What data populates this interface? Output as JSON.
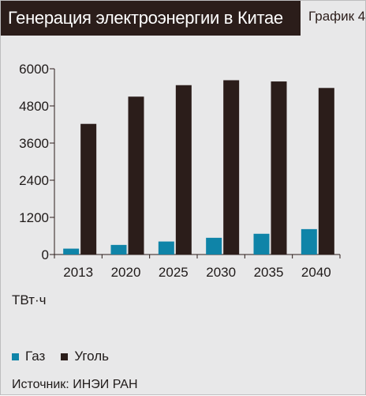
{
  "header": {
    "title": "Генерация электроэнергии в Китае",
    "chart_number": "График 4"
  },
  "units_label": "ТВт·ч",
  "legend": [
    {
      "label": "Газ",
      "color": "#0f84a8"
    },
    {
      "label": "Уголь",
      "color": "#2b1d1a"
    }
  ],
  "source": "Источник: ИНЭИ РАН",
  "chart_data": {
    "type": "bar",
    "categories": [
      "2013",
      "2020",
      "2025",
      "2030",
      "2035",
      "2040"
    ],
    "series": [
      {
        "name": "Газ",
        "color": "#0f84a8",
        "values": [
          190,
          310,
          420,
          540,
          670,
          820
        ]
      },
      {
        "name": "Уголь",
        "color": "#2b1d1a",
        "values": [
          4220,
          5100,
          5470,
          5630,
          5590,
          5380
        ]
      }
    ],
    "yticks": [
      0,
      1200,
      2400,
      3600,
      4800,
      6000
    ],
    "ylim": [
      0,
      6000
    ],
    "ylabel": "ТВт·ч",
    "xlabel": "",
    "grid": false
  }
}
